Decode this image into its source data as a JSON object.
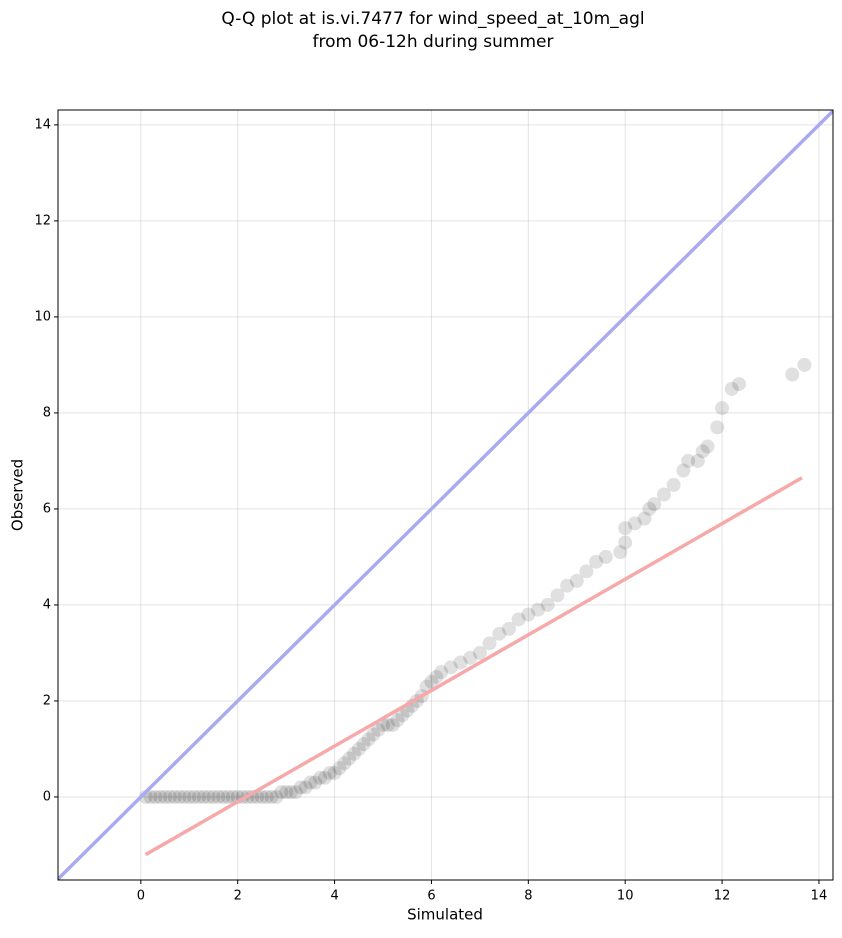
{
  "chart_data": {
    "type": "scatter",
    "title": [
      "Q-Q plot at is.vi.7477 for wind_speed_at_10m_agl",
      "from 06-12h during summer"
    ],
    "xlabel": "Simulated",
    "ylabel": "Observed",
    "xlim": [
      -1.71,
      14.29
    ],
    "ylim": [
      -1.73,
      14.31
    ],
    "xticks": [
      0,
      2,
      4,
      6,
      8,
      10,
      12,
      14
    ],
    "yticks": [
      0,
      2,
      4,
      6,
      8,
      10,
      12,
      14
    ],
    "grid": true,
    "points": {
      "color": "#000000",
      "opacity": 0.12,
      "x": [
        0.1,
        0.2,
        0.3,
        0.4,
        0.5,
        0.6,
        0.7,
        0.8,
        0.9,
        1.0,
        1.1,
        1.2,
        1.3,
        1.4,
        1.5,
        1.6,
        1.7,
        1.8,
        1.9,
        2.0,
        2.1,
        2.2,
        2.3,
        2.4,
        2.5,
        2.6,
        2.7,
        2.8,
        2.9,
        3.0,
        3.1,
        3.2,
        3.3,
        3.4,
        3.5,
        3.6,
        3.7,
        3.8,
        3.9,
        4.0,
        4.1,
        4.2,
        4.3,
        4.4,
        4.5,
        4.6,
        4.7,
        4.8,
        4.9,
        5.0,
        5.1,
        5.2,
        5.3,
        5.4,
        5.5,
        5.6,
        5.7,
        5.8,
        5.9,
        6.0,
        6.1,
        6.2,
        6.4,
        6.6,
        6.8,
        7.0,
        7.2,
        7.4,
        7.6,
        7.8,
        8.0,
        8.2,
        8.4,
        8.6,
        8.8,
        9.0,
        9.2,
        9.4,
        9.6,
        9.9,
        10.0,
        10.0,
        10.2,
        10.4,
        10.5,
        10.6,
        10.8,
        11.0,
        11.2,
        11.3,
        11.5,
        11.6,
        11.7,
        11.9,
        12.0,
        12.2,
        12.35,
        13.45,
        13.7
      ],
      "y": [
        0,
        0,
        0,
        0,
        0,
        0,
        0,
        0,
        0,
        0,
        0,
        0,
        0,
        0,
        0,
        0,
        0,
        0,
        0,
        0,
        0,
        0,
        0,
        0,
        0,
        0,
        0,
        0,
        0.1,
        0.1,
        0.1,
        0.1,
        0.2,
        0.2,
        0.3,
        0.3,
        0.4,
        0.4,
        0.5,
        0.5,
        0.6,
        0.7,
        0.8,
        0.9,
        1.0,
        1.1,
        1.2,
        1.3,
        1.4,
        1.5,
        1.5,
        1.5,
        1.6,
        1.7,
        1.8,
        1.9,
        2.0,
        2.1,
        2.3,
        2.4,
        2.5,
        2.6,
        2.7,
        2.8,
        2.9,
        3.0,
        3.2,
        3.4,
        3.5,
        3.7,
        3.8,
        3.9,
        4.0,
        4.2,
        4.4,
        4.5,
        4.7,
        4.9,
        5.0,
        5.1,
        5.3,
        5.6,
        5.7,
        5.8,
        6.0,
        6.1,
        6.3,
        6.5,
        6.8,
        7.0,
        7.0,
        7.2,
        7.3,
        7.7,
        8.1,
        8.5,
        8.6,
        8.8,
        9.0
      ]
    },
    "lines": [
      {
        "color": "#aaaaf0",
        "x": [
          -1.71,
          14.29
        ],
        "y": [
          -1.71,
          14.29
        ]
      },
      {
        "color": "#f5a9a9",
        "x": [
          0.1,
          13.65
        ],
        "y": [
          -1.2,
          6.65
        ]
      }
    ]
  }
}
